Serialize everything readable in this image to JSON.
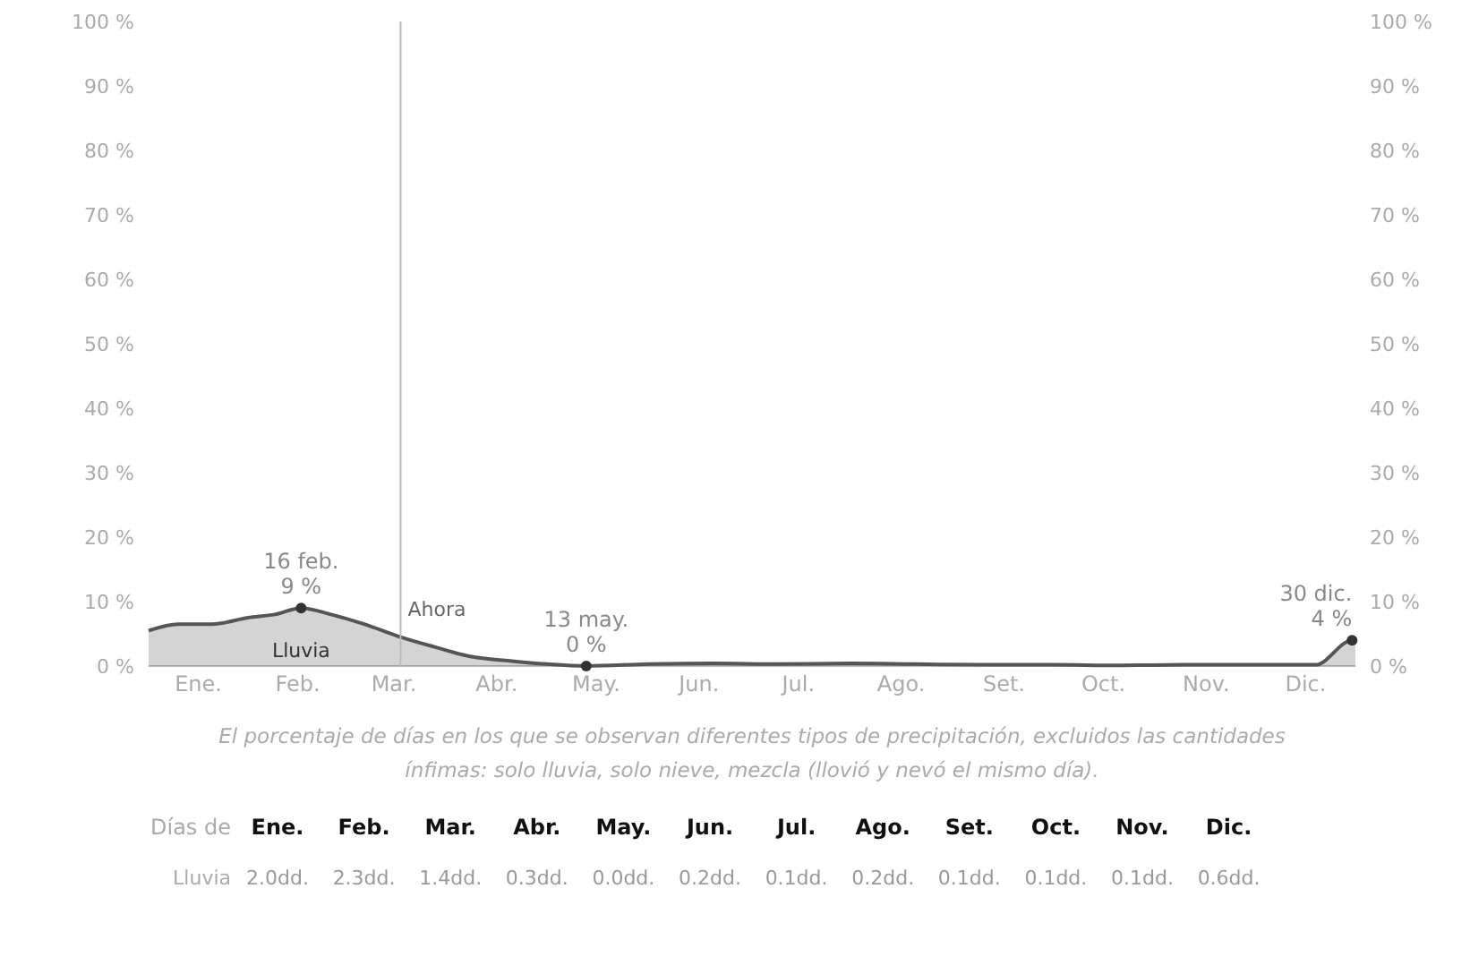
{
  "chart_data": [
    {
      "type": "area",
      "xlim": [
        "--01-01",
        "--12-31"
      ],
      "xticks": [
        {
          "value": "--01-16",
          "label": "Ene."
        },
        {
          "value": "--02-15",
          "label": "Feb."
        },
        {
          "value": "--03-16",
          "label": "Mar."
        },
        {
          "value": "--04-16",
          "label": "Abr."
        },
        {
          "value": "--05-16",
          "label": "May."
        },
        {
          "value": "--06-16",
          "label": "Jun."
        },
        {
          "value": "--07-16",
          "label": "Jul."
        },
        {
          "value": "--08-16",
          "label": "Ago."
        },
        {
          "value": "--09-16",
          "label": "Set."
        },
        {
          "value": "--10-16",
          "label": "Oct."
        },
        {
          "value": "--11-16",
          "label": "Nov."
        },
        {
          "value": "--12-16",
          "label": "Dic."
        }
      ],
      "ylim": [
        0,
        100
      ],
      "yticks": [
        {
          "value": 0,
          "label": "0 %"
        },
        {
          "value": 10,
          "label": "10 %"
        },
        {
          "value": 20,
          "label": "20 %"
        },
        {
          "value": 30,
          "label": "30 %"
        },
        {
          "value": 40,
          "label": "40 %"
        },
        {
          "value": 50,
          "label": "50 %"
        },
        {
          "value": 60,
          "label": "60 %"
        },
        {
          "value": 70,
          "label": "70 %"
        },
        {
          "value": 80,
          "label": "80 %"
        },
        {
          "value": 90,
          "label": "90 %"
        },
        {
          "value": 100,
          "label": "100 %"
        }
      ],
      "y2lim": [
        0,
        100
      ],
      "y2ticks": [
        {
          "value": 0,
          "label": "0 %"
        },
        {
          "value": 10,
          "label": "10 %"
        },
        {
          "value": 20,
          "label": "20 %"
        },
        {
          "value": 30,
          "label": "30 %"
        },
        {
          "value": 40,
          "label": "40 %"
        },
        {
          "value": 50,
          "label": "50 %"
        },
        {
          "value": 60,
          "label": "60 %"
        },
        {
          "value": 70,
          "label": "70 %"
        },
        {
          "value": 80,
          "label": "80 %"
        },
        {
          "value": 90,
          "label": "90 %"
        },
        {
          "value": 100,
          "label": "100 %"
        }
      ],
      "series": [
        {
          "name": "Lluvia",
          "color": "#555555",
          "x": [
            "--01-01",
            "--01-10",
            "--01-20",
            "--01-31",
            "--02-08",
            "--02-16",
            "--02-25",
            "--03-07",
            "--03-18",
            "--03-28",
            "--04-08",
            "--04-20",
            "--05-01",
            "--05-13",
            "--06-01",
            "--06-20",
            "--07-10",
            "--08-01",
            "--08-20",
            "--09-10",
            "--10-01",
            "--10-20",
            "--11-10",
            "--11-30",
            "--12-19",
            "--12-30",
            "--12-31"
          ],
          "values": [
            5.5,
            6.5,
            6.5,
            7.5,
            8,
            9,
            8,
            6.5,
            4.5,
            3,
            1.5,
            0.8,
            0.3,
            0,
            0.3,
            0.4,
            0.3,
            0.4,
            0.3,
            0.2,
            0.2,
            0.1,
            0.2,
            0.2,
            0.2,
            4,
            4
          ]
        }
      ],
      "ref_lines": [
        {
          "axis": "x",
          "value": "--03-18",
          "label": "Ahora",
          "color": "#bbbbbb"
        }
      ],
      "annotations": [
        {
          "text": "16 feb.\n9 %",
          "x": "--02-16",
          "y": 9
        },
        {
          "text": "13 may.\n0 %",
          "x": "--05-13",
          "y": 0
        },
        {
          "text": "30 dic.\n4 %",
          "x": "--12-30",
          "y": 4
        },
        "El porcentaje de días en los que se observan diferentes tipos de precipitación, excluidos las cantidades\nínfimas: solo lluvia, solo nieve, mezcla (llovió y nevó el mismo día)."
      ],
      "marker": "none",
      "grid": false
    },
    {
      "type": "other",
      "title": "Días de",
      "categories": [
        "Ene.",
        "Feb.",
        "Mar.",
        "Abr.",
        "May.",
        "Jun.",
        "Jul.",
        "Ago.",
        "Set.",
        "Oct.",
        "Nov.",
        "Dic."
      ],
      "series": [
        {
          "name": "Lluvia",
          "values": [
            2.0,
            2.3,
            1.4,
            0.3,
            0.0,
            0.2,
            0.1,
            0.2,
            0.1,
            0.1,
            0.1,
            0.6
          ],
          "value_labels": [
            "2.0dd.",
            "2.3dd.",
            "1.4dd.",
            "0.3dd.",
            "0.0dd.",
            "0.2dd.",
            "0.1dd.",
            "0.2dd.",
            "0.1dd.",
            "0.1dd.",
            "0.1dd.",
            "0.6dd."
          ]
        }
      ]
    }
  ]
}
